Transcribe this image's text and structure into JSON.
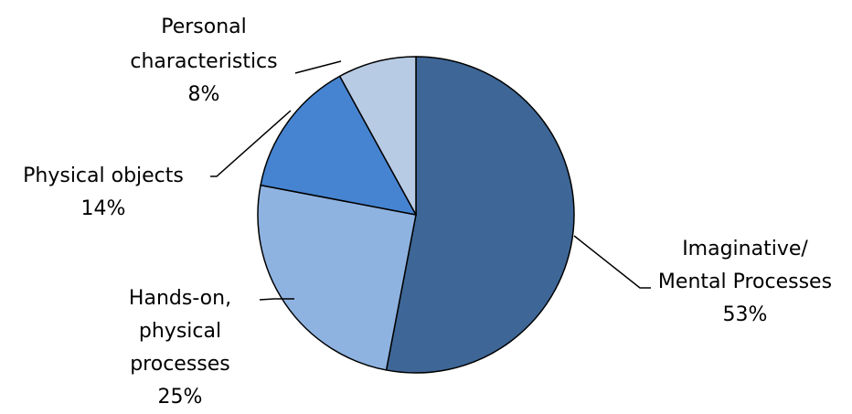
{
  "chart_data": {
    "type": "pie",
    "title": "",
    "start_angle_deg": 0,
    "direction": "clockwise",
    "slices": [
      {
        "label_lines": [
          "Imaginative/",
          "Mental Processes"
        ],
        "pct_label": "53%",
        "value": 53,
        "color": "#3e6797"
      },
      {
        "label_lines": [
          "Hands-on,",
          "physical",
          "processes"
        ],
        "pct_label": "25%",
        "value": 25,
        "color": "#8fb3e1"
      },
      {
        "label_lines": [
          "Physical objects"
        ],
        "pct_label": "14%",
        "value": 14,
        "color": "#4684d1"
      },
      {
        "label_lines": [
          "Personal",
          "characteristics"
        ],
        "pct_label": "8%",
        "value": 8,
        "color": "#b7cbe4"
      }
    ]
  }
}
